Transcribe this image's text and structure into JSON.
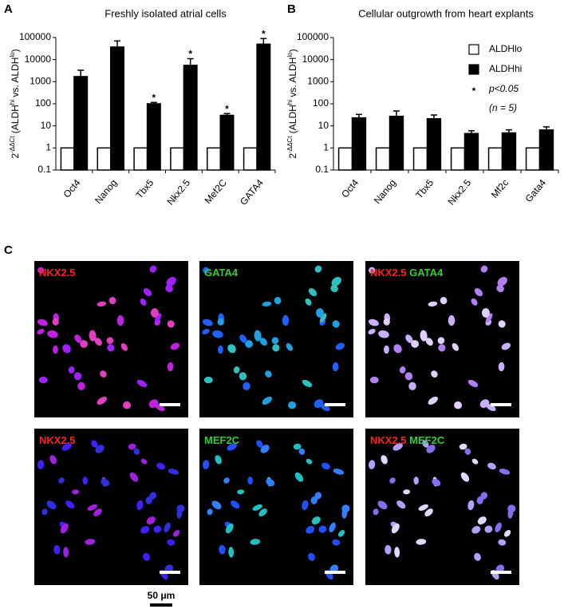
{
  "chart_data": [
    {
      "type": "bar",
      "panel": "A",
      "title": "Freshly isolated atrial cells",
      "ylabel_parts": [
        "2",
        "-ΔΔCt",
        " (ALDH",
        "hi",
        " vs. ALDH",
        "lo",
        ")"
      ],
      "categories": [
        "Oct4",
        "Nanog",
        "Tbx5",
        "Nkx2.5",
        "Mef2C",
        "GATA4"
      ],
      "series": [
        {
          "name": "ALDHlo",
          "color": "#ffffff",
          "values": [
            1,
            1,
            1,
            1,
            1,
            1
          ]
        },
        {
          "name": "ALDHhi",
          "color": "#000000",
          "values": [
            1700,
            37000,
            100,
            5500,
            30,
            50000
          ],
          "errors": [
            1600,
            33000,
            15,
            5500,
            6,
            40000
          ]
        }
      ],
      "significance_marker": "*",
      "significant": [
        false,
        false,
        true,
        true,
        true,
        true
      ],
      "log_y": true,
      "ylim": [
        0.1,
        100000
      ],
      "yticks": [
        0.1,
        1,
        10,
        100,
        1000,
        10000,
        100000
      ],
      "legend": false
    },
    {
      "type": "bar",
      "panel": "B",
      "title": "Cellular outgrowth from heart explants",
      "ylabel_parts": [
        "2",
        "-ΔΔCt",
        " (ALDH",
        "hi",
        " vs. ALDH",
        "lo",
        ")"
      ],
      "categories": [
        "Oct4",
        "Nanog",
        "Tbx5",
        "Nkx2.5",
        "Mf2c",
        "Gata4"
      ],
      "series": [
        {
          "name": "ALDHlo",
          "color": "#ffffff",
          "values": [
            1,
            1,
            1,
            1,
            1,
            1
          ]
        },
        {
          "name": "ALDHhi",
          "color": "#000000",
          "values": [
            23,
            27,
            21,
            4.5,
            4.8,
            6.5
          ],
          "errors": [
            10,
            20,
            10,
            1.5,
            1.8,
            2.5
          ]
        }
      ],
      "legend_notes": [
        {
          "marker": "*",
          "text": "p<0.05"
        },
        {
          "marker": "",
          "text": "(n = 5)"
        }
      ],
      "log_y": true,
      "ylim": [
        0.1,
        100000
      ],
      "yticks": [
        0.1,
        1,
        10,
        100,
        1000,
        10000,
        100000
      ],
      "legend": true,
      "legend_position": "top-right"
    }
  ],
  "panel_c": {
    "label": "C",
    "scale_bar": "50 μm",
    "images": [
      {
        "labels": [
          {
            "text": "NKX2.5",
            "color": "#ff2020"
          }
        ]
      },
      {
        "labels": [
          {
            "text": "GATA4",
            "color": "#30d030"
          }
        ]
      },
      {
        "labels": [
          {
            "text": "NKX2.5",
            "color": "#ff2020"
          },
          {
            "text": " GATA4",
            "color": "#30d030"
          }
        ]
      },
      {
        "labels": [
          {
            "text": "NKX2.5",
            "color": "#ff2020"
          }
        ]
      },
      {
        "labels": [
          {
            "text": "MEF2C",
            "color": "#30d030"
          }
        ]
      },
      {
        "labels": [
          {
            "text": "NKX2.5",
            "color": "#ff2020"
          },
          {
            "text": " MEF2C",
            "color": "#30d030"
          }
        ]
      }
    ]
  }
}
